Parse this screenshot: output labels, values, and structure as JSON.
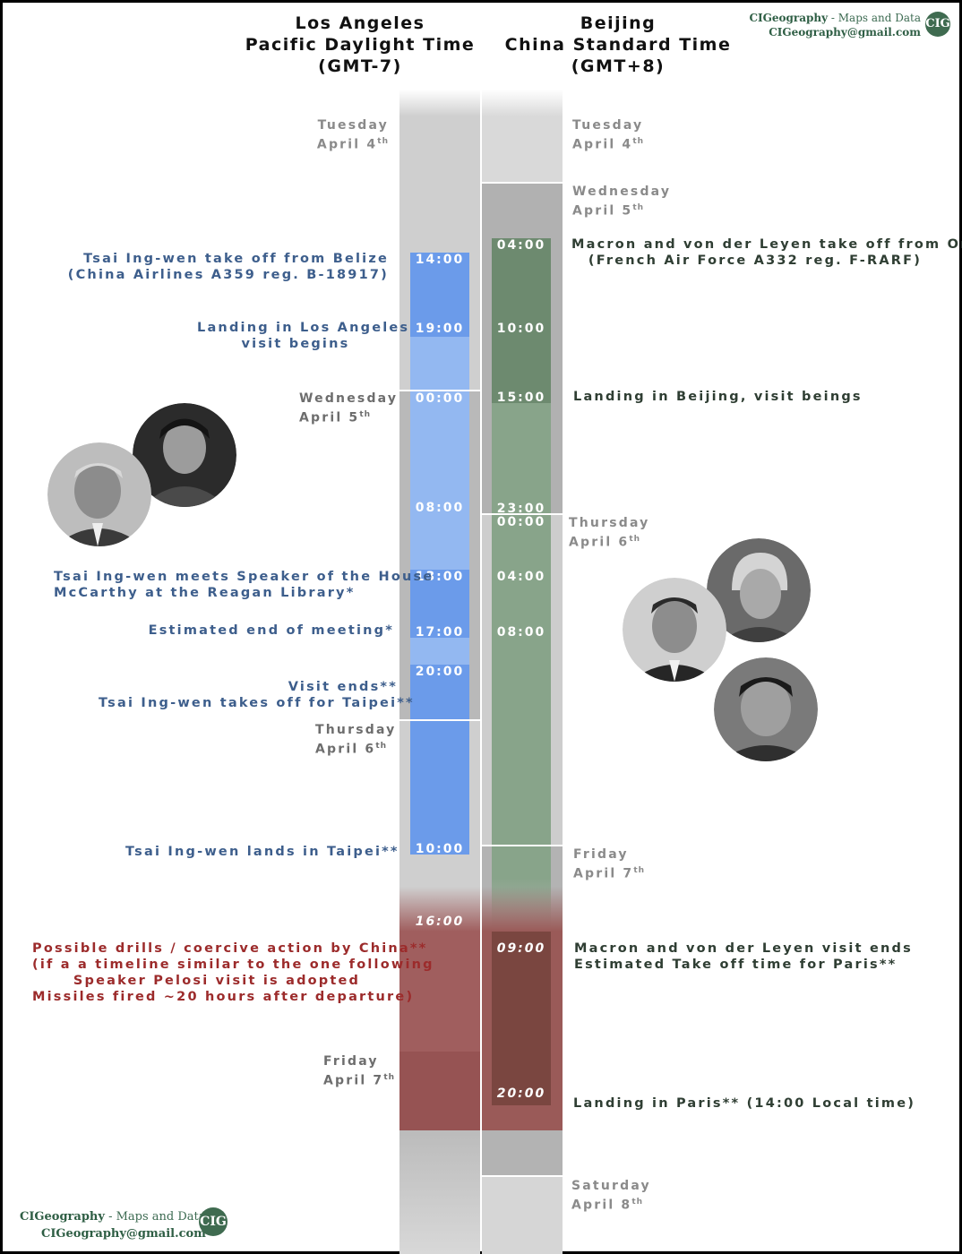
{
  "header": {
    "la": {
      "city": "Los Angeles",
      "zone": "Pacific Daylight Time",
      "offset": "(GMT-7)"
    },
    "bj": {
      "city": "Beijing",
      "zone": "China Standard Time",
      "offset": "(GMT+8)"
    }
  },
  "brand": {
    "top": {
      "name": "CIGeography",
      "sep": " - ",
      "tagline": "Maps and Data",
      "email": "CIGeography@gmail.com"
    },
    "bottom": {
      "name": "CIGeography",
      "sep": " - ",
      "tagline": "Maps and Data",
      "email": "CIGeography@gmail.com"
    },
    "logo_text": "CIG"
  },
  "la_days": [
    {
      "day": "Tuesday",
      "date": "April 4",
      "sup": "th"
    },
    {
      "day": "Wednesday",
      "date": "April 5",
      "sup": "th"
    },
    {
      "day": "Thursday",
      "date": "April 6",
      "sup": "th"
    },
    {
      "day": "Friday",
      "date": "April 7",
      "sup": "th"
    }
  ],
  "bj_days": [
    {
      "day": "Tuesday",
      "date": "April 4",
      "sup": "th"
    },
    {
      "day": "Wednesday",
      "date": "April 5",
      "sup": "th"
    },
    {
      "day": "Thursday",
      "date": "April 6",
      "sup": "th"
    },
    {
      "day": "Friday",
      "date": "April 7",
      "sup": "th"
    },
    {
      "day": "Saturday",
      "date": "April 8",
      "sup": "th"
    }
  ],
  "la_times": [
    "14:00",
    "19:00",
    "00:00",
    "08:00",
    "13:00",
    "17:00",
    "20:00",
    "10:00",
    "16:00"
  ],
  "bj_times": [
    "04:00",
    "10:00",
    "15:00",
    "23:00",
    "00:00",
    "04:00",
    "08:00",
    "09:00",
    "20:00"
  ],
  "la_events": [
    {
      "lines": [
        "Tsai Ing-wen take off from Belize",
        "(China Airlines A359 reg. B-18917)"
      ]
    },
    {
      "lines": [
        "Landing in Los Angeles",
        "visit begins"
      ]
    },
    {
      "lines": [
        "Tsai Ing-wen meets Speaker of the House",
        "McCarthy at the Reagan Library*"
      ]
    },
    {
      "lines": [
        "Estimated end of meeting*"
      ]
    },
    {
      "lines": [
        "Visit ends**",
        "Tsai Ing-wen takes off for Taipei**"
      ]
    },
    {
      "lines": [
        "Tsai Ing-wen lands in Taipei**"
      ]
    }
  ],
  "bj_events": [
    {
      "lines": [
        "Macron and von der Leyen take off from Orly",
        "(French Air Force A332 reg. F-RARF)"
      ]
    },
    {
      "lines": [
        "Landing in Beijing, visit beings"
      ]
    },
    {
      "lines": [
        "Macron and von der Leyen visit ends",
        "Estimated Take off time for Paris**"
      ]
    },
    {
      "lines": [
        "Landing in Paris** (14:00 Local time)"
      ]
    }
  ],
  "china_event": {
    "lines": [
      "Possible drills / coercive action by China**",
      "(if a a timeline similar to the one following",
      "Speaker Pelosi visit is adopted",
      "Missiles fired ~20 hours after departure)"
    ]
  },
  "photos": [
    {
      "name": "mccarthy-photo"
    },
    {
      "name": "tsai-photo"
    },
    {
      "name": "macron-photo"
    },
    {
      "name": "von-der-leyen-photo"
    },
    {
      "name": "xi-photo"
    }
  ],
  "colors": {
    "tsai_flight": "#6b9bea",
    "tsai_visit": "#93b8f1",
    "macron_flight": "#6d8a6f",
    "macron_visit": "#88a48a",
    "china_action": "#a05e5e",
    "la_text": "#3d5e8c",
    "bj_text": "#2f3e33",
    "china_text": "#9c2b2b"
  }
}
